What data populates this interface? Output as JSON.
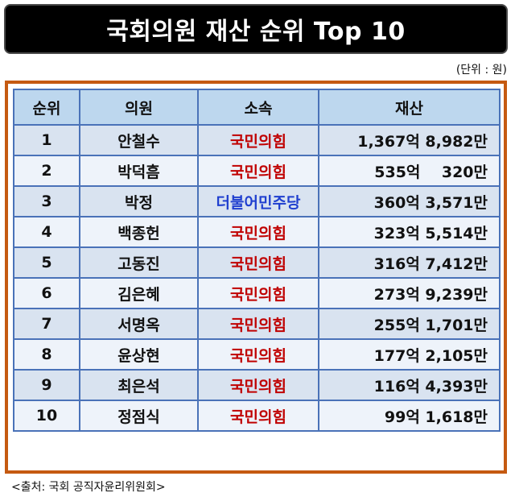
{
  "title": "국회의원 재산 순위 Top 10",
  "unit_note": "(단위 : 원)",
  "source": "<출처: 국회 공직자윤리위원회>",
  "colors": {
    "party_red": "#c00000",
    "party_blue": "#1f3fcf",
    "frame": "#c55a11",
    "header_bg": "#bdd7ee"
  },
  "chart_data": {
    "type": "table",
    "title": "국회의원 재산 순위 Top 10",
    "columns": [
      "순위",
      "의원",
      "소속",
      "재산"
    ],
    "rows": [
      {
        "rank": "1",
        "name": "안철수",
        "party": "국민의힘",
        "asset": "1,367억 8,982만",
        "party_color": "red"
      },
      {
        "rank": "2",
        "name": "박덕흠",
        "party": "국민의힘",
        "asset": "535억    320만",
        "party_color": "red"
      },
      {
        "rank": "3",
        "name": "박정",
        "party": "더불어민주당",
        "asset": "360억 3,571만",
        "party_color": "blue"
      },
      {
        "rank": "4",
        "name": "백종헌",
        "party": "국민의힘",
        "asset": "323억 5,514만",
        "party_color": "red"
      },
      {
        "rank": "5",
        "name": "고동진",
        "party": "국민의힘",
        "asset": "316억 7,412만",
        "party_color": "red"
      },
      {
        "rank": "6",
        "name": "김은혜",
        "party": "국민의힘",
        "asset": "273억 9,239만",
        "party_color": "red"
      },
      {
        "rank": "7",
        "name": "서명옥",
        "party": "국민의힘",
        "asset": "255억 1,701만",
        "party_color": "red"
      },
      {
        "rank": "8",
        "name": "윤상현",
        "party": "국민의힘",
        "asset": "177억 2,105만",
        "party_color": "red"
      },
      {
        "rank": "9",
        "name": "최은석",
        "party": "국민의힘",
        "asset": "116억 4,393만",
        "party_color": "red"
      },
      {
        "rank": "10",
        "name": "정점식",
        "party": "국민의힘",
        "asset": "99억 1,618만",
        "party_color": "red"
      }
    ]
  }
}
